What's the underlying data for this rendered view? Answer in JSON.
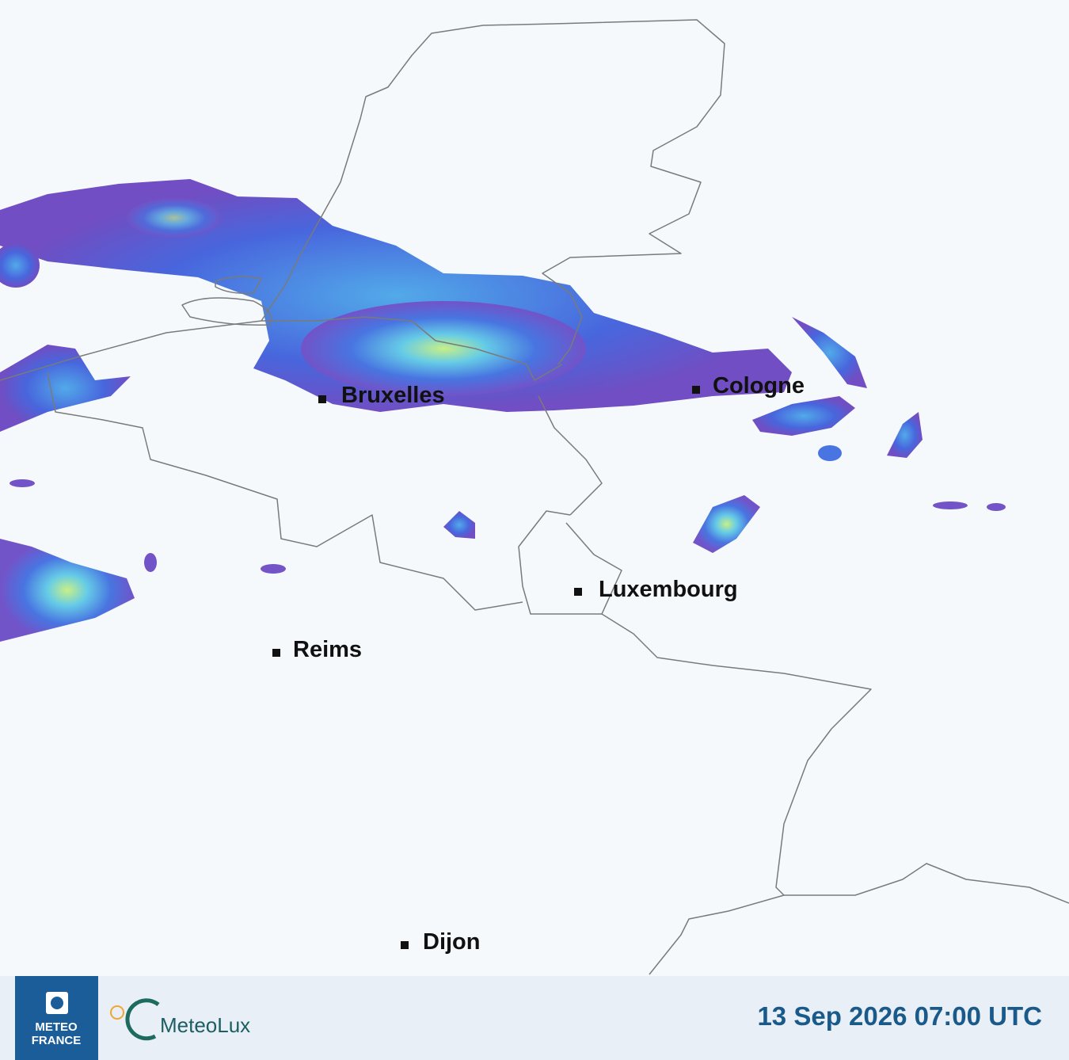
{
  "cities": [
    {
      "label": "Bruxelles"
    },
    {
      "label": "Cologne"
    },
    {
      "label": "Luxembourg"
    },
    {
      "label": "Reims"
    },
    {
      "label": "Dijon"
    }
  ],
  "footer": {
    "meteo_france": [
      "METEO",
      "FRANCE"
    ],
    "meteolux": "MeteoLux",
    "timestamp": "13 Sep 2026 07:00 UTC"
  }
}
